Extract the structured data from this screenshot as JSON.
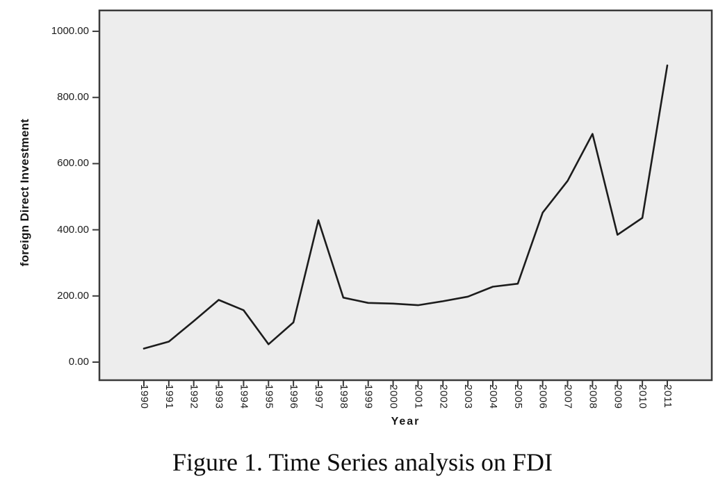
{
  "figure_caption": "Figure 1. Time Series analysis on FDI",
  "colors": {
    "page_bg": "#ffffff",
    "plot_bg": "#ededed",
    "frame": "#3a3a3a",
    "line": "#1c1c1c",
    "text": "#161616"
  },
  "chart_data": {
    "type": "line",
    "title": "",
    "xlabel": "Year",
    "ylabel": "foreign Direct Investment",
    "x": [
      1990,
      1991,
      1992,
      1993,
      1994,
      1995,
      1996,
      1997,
      1998,
      1999,
      2000,
      2001,
      2002,
      2003,
      2004,
      2005,
      2006,
      2007,
      2008,
      2009,
      2010,
      2011
    ],
    "series": [
      {
        "name": "Foreign Direct Investment",
        "values": [
          41,
          62,
          124,
          188,
          157,
          54,
          120,
          429,
          195,
          179,
          177,
          172,
          184,
          198,
          228,
          237,
          452,
          548,
          690,
          385,
          436,
          897
        ]
      }
    ],
    "y_ticks": {
      "values": [
        0,
        200,
        400,
        600,
        800,
        1000
      ],
      "labels": [
        "0.00",
        "200.00",
        "400.00",
        "600.00",
        "800.00",
        "1000.00"
      ]
    },
    "ylim": [
      -55,
      1065
    ],
    "xlim": [
      1988.2,
      1993.9
    ],
    "grid": false,
    "legend": false
  }
}
